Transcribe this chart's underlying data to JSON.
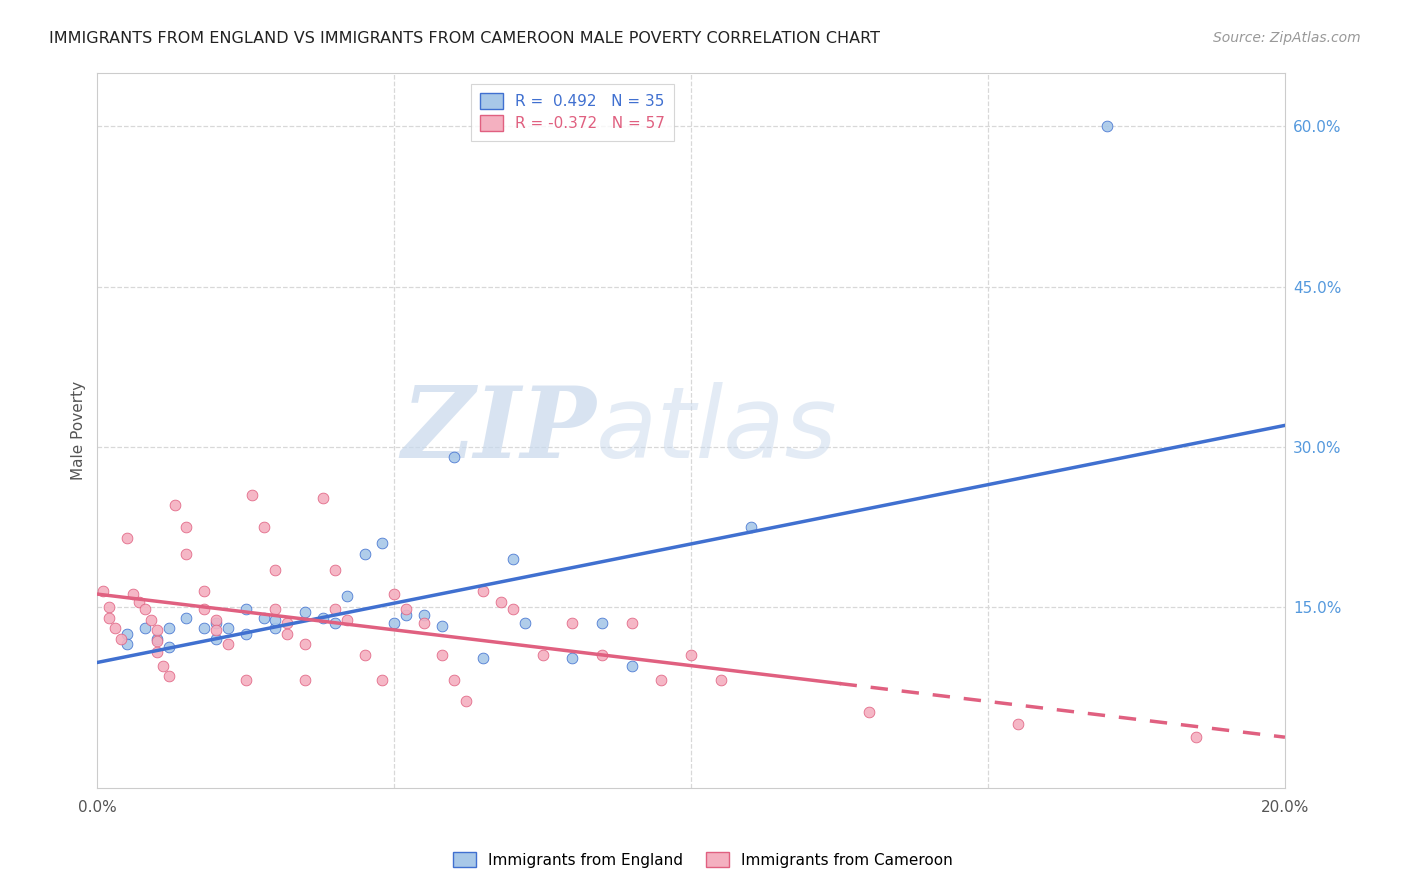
{
  "title": "IMMIGRANTS FROM ENGLAND VS IMMIGRANTS FROM CAMEROON MALE POVERTY CORRELATION CHART",
  "source": "Source: ZipAtlas.com",
  "ylabel": "Male Poverty",
  "xmin": 0.0,
  "xmax": 0.2,
  "ymin": -0.02,
  "ymax": 0.65,
  "ytick_positions": [
    0.15,
    0.3,
    0.45,
    0.6
  ],
  "ytick_labels": [
    "15.0%",
    "30.0%",
    "45.0%",
    "60.0%"
  ],
  "legend1_label": "R =  0.492   N = 35",
  "legend2_label": "R = -0.372   N = 57",
  "england_color": "#a8c8e8",
  "cameroon_color": "#f4b0c0",
  "england_line_color": "#4070d0",
  "cameroon_line_color": "#e06080",
  "watermark_zip": "ZIP",
  "watermark_atlas": "atlas",
  "england_scatter": [
    [
      0.005,
      0.125
    ],
    [
      0.005,
      0.115
    ],
    [
      0.008,
      0.13
    ],
    [
      0.01,
      0.12
    ],
    [
      0.012,
      0.112
    ],
    [
      0.012,
      0.13
    ],
    [
      0.015,
      0.14
    ],
    [
      0.018,
      0.13
    ],
    [
      0.02,
      0.12
    ],
    [
      0.02,
      0.135
    ],
    [
      0.022,
      0.13
    ],
    [
      0.025,
      0.148
    ],
    [
      0.025,
      0.125
    ],
    [
      0.028,
      0.14
    ],
    [
      0.03,
      0.13
    ],
    [
      0.03,
      0.138
    ],
    [
      0.035,
      0.145
    ],
    [
      0.038,
      0.14
    ],
    [
      0.04,
      0.135
    ],
    [
      0.042,
      0.16
    ],
    [
      0.045,
      0.2
    ],
    [
      0.048,
      0.21
    ],
    [
      0.05,
      0.135
    ],
    [
      0.052,
      0.142
    ],
    [
      0.055,
      0.142
    ],
    [
      0.058,
      0.132
    ],
    [
      0.06,
      0.29
    ],
    [
      0.065,
      0.102
    ],
    [
      0.07,
      0.195
    ],
    [
      0.072,
      0.135
    ],
    [
      0.08,
      0.102
    ],
    [
      0.085,
      0.135
    ],
    [
      0.09,
      0.095
    ],
    [
      0.11,
      0.225
    ],
    [
      0.17,
      0.6
    ]
  ],
  "cameroon_scatter": [
    [
      0.001,
      0.165
    ],
    [
      0.002,
      0.15
    ],
    [
      0.002,
      0.14
    ],
    [
      0.003,
      0.13
    ],
    [
      0.004,
      0.12
    ],
    [
      0.005,
      0.215
    ],
    [
      0.006,
      0.162
    ],
    [
      0.007,
      0.155
    ],
    [
      0.008,
      0.148
    ],
    [
      0.009,
      0.138
    ],
    [
      0.01,
      0.128
    ],
    [
      0.01,
      0.118
    ],
    [
      0.01,
      0.108
    ],
    [
      0.011,
      0.095
    ],
    [
      0.012,
      0.085
    ],
    [
      0.013,
      0.245
    ],
    [
      0.015,
      0.225
    ],
    [
      0.015,
      0.2
    ],
    [
      0.018,
      0.165
    ],
    [
      0.018,
      0.148
    ],
    [
      0.02,
      0.138
    ],
    [
      0.02,
      0.128
    ],
    [
      0.022,
      0.115
    ],
    [
      0.025,
      0.082
    ],
    [
      0.026,
      0.255
    ],
    [
      0.028,
      0.225
    ],
    [
      0.03,
      0.185
    ],
    [
      0.03,
      0.148
    ],
    [
      0.032,
      0.135
    ],
    [
      0.032,
      0.125
    ],
    [
      0.035,
      0.115
    ],
    [
      0.035,
      0.082
    ],
    [
      0.038,
      0.252
    ],
    [
      0.04,
      0.185
    ],
    [
      0.04,
      0.148
    ],
    [
      0.042,
      0.138
    ],
    [
      0.045,
      0.105
    ],
    [
      0.048,
      0.082
    ],
    [
      0.05,
      0.162
    ],
    [
      0.052,
      0.148
    ],
    [
      0.055,
      0.135
    ],
    [
      0.058,
      0.105
    ],
    [
      0.06,
      0.082
    ],
    [
      0.062,
      0.062
    ],
    [
      0.065,
      0.165
    ],
    [
      0.068,
      0.155
    ],
    [
      0.07,
      0.148
    ],
    [
      0.075,
      0.105
    ],
    [
      0.08,
      0.135
    ],
    [
      0.085,
      0.105
    ],
    [
      0.09,
      0.135
    ],
    [
      0.095,
      0.082
    ],
    [
      0.1,
      0.105
    ],
    [
      0.105,
      0.082
    ],
    [
      0.13,
      0.052
    ],
    [
      0.155,
      0.04
    ],
    [
      0.185,
      0.028
    ]
  ],
  "england_trendline": [
    [
      0.0,
      0.098
    ],
    [
      0.2,
      0.32
    ]
  ],
  "cameroon_trendline": [
    [
      0.0,
      0.162
    ],
    [
      0.2,
      0.028
    ]
  ],
  "cameroon_trendline_dashed_start": 0.125
}
